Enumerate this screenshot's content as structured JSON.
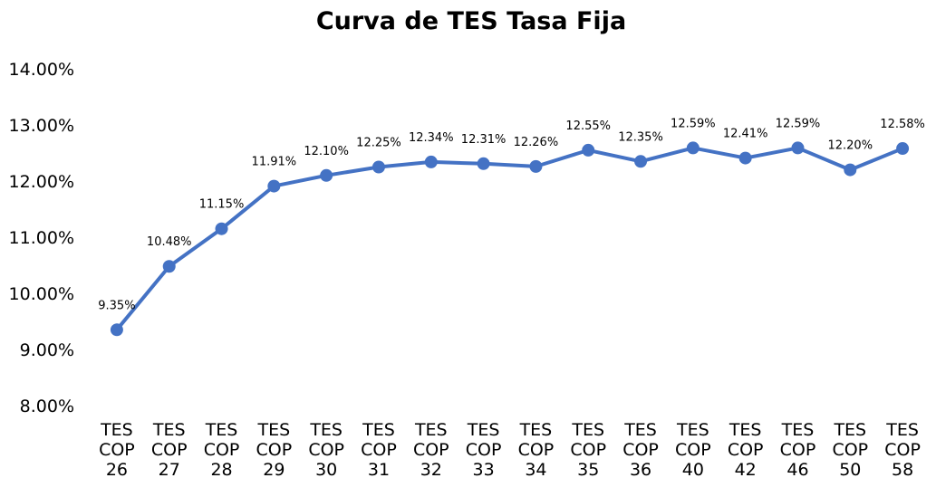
{
  "chart_data": {
    "type": "line",
    "title": "Curva de TES Tasa Fija",
    "xlabel": "",
    "ylabel": "",
    "categories": [
      [
        "TES",
        "COP",
        "26"
      ],
      [
        "TES",
        "COP",
        "27"
      ],
      [
        "TES",
        "COP",
        "28"
      ],
      [
        "TES",
        "COP",
        "29"
      ],
      [
        "TES",
        "COP",
        "30"
      ],
      [
        "TES",
        "COP",
        "31"
      ],
      [
        "TES",
        "COP",
        "32"
      ],
      [
        "TES",
        "COP",
        "33"
      ],
      [
        "TES",
        "COP",
        "34"
      ],
      [
        "TES",
        "COP",
        "35"
      ],
      [
        "TES",
        "COP",
        "36"
      ],
      [
        "TES",
        "COP",
        "40"
      ],
      [
        "TES",
        "COP",
        "42"
      ],
      [
        "TES",
        "COP",
        "46"
      ],
      [
        "TES",
        "COP",
        "50"
      ],
      [
        "TES",
        "COP",
        "58"
      ]
    ],
    "series": [
      {
        "values": [
          9.35,
          10.48,
          11.15,
          11.91,
          12.1,
          12.25,
          12.34,
          12.31,
          12.26,
          12.55,
          12.35,
          12.59,
          12.41,
          12.59,
          12.2,
          12.58
        ],
        "labels": [
          "9.35%",
          "10.48%",
          "11.15%",
          "11.91%",
          "12.10%",
          "12.25%",
          "12.34%",
          "12.31%",
          "12.26%",
          "12.55%",
          "12.35%",
          "12.59%",
          "12.41%",
          "12.59%",
          "12.20%",
          "12.58%"
        ],
        "color": "#4472C4"
      }
    ],
    "ylim": [
      8,
      14
    ],
    "yticks": [
      "8.00%",
      "9.00%",
      "10.00%",
      "11.00%",
      "12.00%",
      "13.00%",
      "14.00%"
    ],
    "grid": false,
    "legend": "none"
  }
}
